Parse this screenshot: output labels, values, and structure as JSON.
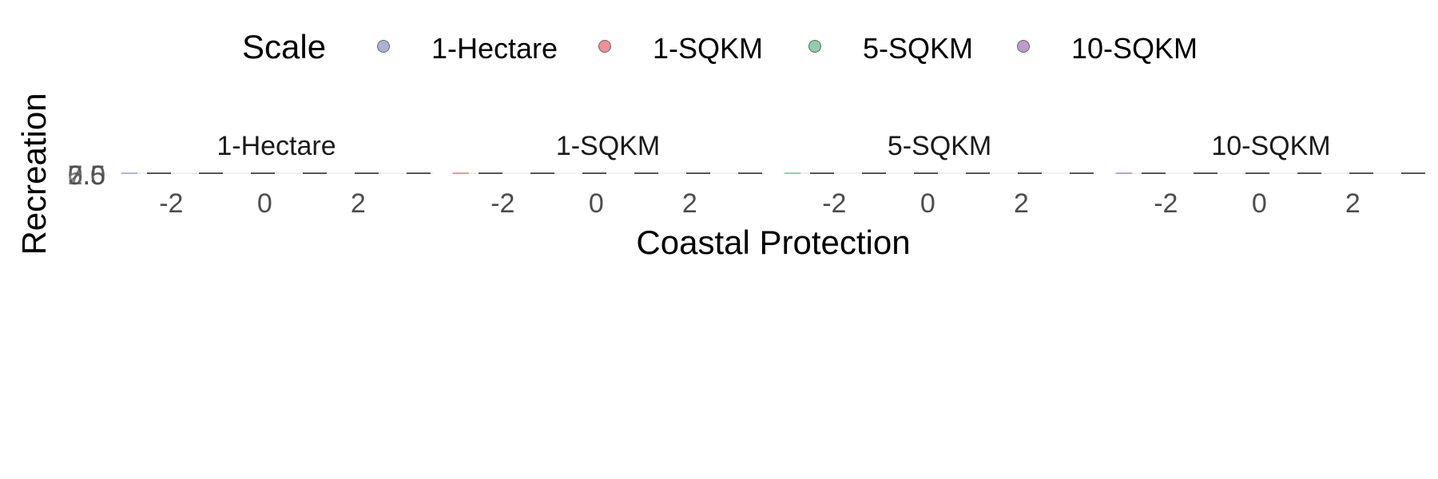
{
  "chart_data": {
    "type": "scatter",
    "facet_by": "Scale",
    "xlabel": "Coastal Protection",
    "ylabel": "Recreation",
    "legend": {
      "title": "Scale",
      "position": "top",
      "entries": [
        {
          "label": "1-Hectare",
          "color": "#8D99C6"
        },
        {
          "label": "1-SQKM",
          "color": "#EC6A6E"
        },
        {
          "label": "5-SQKM",
          "color": "#66BF8C"
        },
        {
          "label": "10-SQKM",
          "color": "#A47BB8"
        }
      ]
    },
    "x_ticks": [
      "-2",
      "0",
      "2"
    ],
    "x_tick_values": [
      -2,
      0,
      2
    ],
    "xlim": [
      -3.1,
      3.6
    ],
    "y_ticks": [
      "0.0",
      "2.5",
      "5.0",
      "7.5"
    ],
    "y_tick_values": [
      0,
      2.5,
      5,
      7.5
    ],
    "ylim": [
      0,
      7.5
    ],
    "grid": true,
    "panels": [
      {
        "title": "1-Hectare",
        "color": "#8D99C6"
      },
      {
        "title": "1-SQKM",
        "color": "#EC6A6E"
      },
      {
        "title": "5-SQKM",
        "color": "#66BF8C"
      },
      {
        "title": "10-SQKM",
        "color": "#A47BB8"
      }
    ]
  }
}
